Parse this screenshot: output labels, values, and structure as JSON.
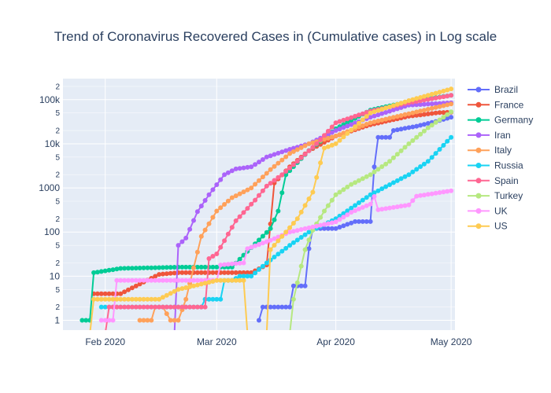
{
  "chart_data": {
    "type": "line",
    "title": "Trend of Coronavirus Recovered Cases in  (Cumulative cases) in Log scale",
    "xlabel": "",
    "ylabel": "",
    "y_scale": "log",
    "x_range": [
      "2020-01-21",
      "2020-05-02"
    ],
    "y_range": [
      0.6,
      300000
    ],
    "x_ticks": [
      {
        "date": "2020-02-01",
        "label": "Feb 2020"
      },
      {
        "date": "2020-03-01",
        "label": "Mar 2020"
      },
      {
        "date": "2020-04-01",
        "label": "Apr 2020"
      },
      {
        "date": "2020-05-01",
        "label": "May 2020"
      }
    ],
    "y_major_ticks": [
      {
        "value": 1,
        "label": "1"
      },
      {
        "value": 10,
        "label": "10"
      },
      {
        "value": 100,
        "label": "100"
      },
      {
        "value": 1000,
        "label": "1000"
      },
      {
        "value": 10000,
        "label": "10k"
      },
      {
        "value": 100000,
        "label": "100k"
      }
    ],
    "y_minor_ticks": [
      {
        "value": 2,
        "label": "2"
      },
      {
        "value": 5,
        "label": "5"
      },
      {
        "value": 20,
        "label": "2"
      },
      {
        "value": 50,
        "label": "5"
      },
      {
        "value": 200,
        "label": "2"
      },
      {
        "value": 500,
        "label": "5"
      },
      {
        "value": 2000,
        "label": "2"
      },
      {
        "value": 5000,
        "label": "5"
      },
      {
        "value": 20000,
        "label": "2"
      },
      {
        "value": 50000,
        "label": "5"
      },
      {
        "value": 200000,
        "label": "2"
      }
    ],
    "legend_position": "right",
    "series": [
      {
        "name": "Brazil",
        "color": "#636efa",
        "points": [
          [
            "2020-03-12",
            1
          ],
          [
            "2020-03-13",
            2
          ],
          [
            "2020-03-20",
            2
          ],
          [
            "2020-03-21",
            6
          ],
          [
            "2020-03-24",
            6
          ],
          [
            "2020-03-25",
            42
          ],
          [
            "2020-03-26",
            120
          ],
          [
            "2020-04-01",
            120
          ],
          [
            "2020-04-06",
            173
          ],
          [
            "2020-04-10",
            173
          ],
          [
            "2020-04-11",
            3000
          ],
          [
            "2020-04-12",
            14026
          ],
          [
            "2020-04-15",
            14026
          ],
          [
            "2020-04-16",
            20000
          ],
          [
            "2020-04-22",
            25000
          ],
          [
            "2020-04-27",
            32000
          ],
          [
            "2020-05-01",
            40000
          ]
        ]
      },
      {
        "name": "France",
        "color": "#ef553b",
        "points": [
          [
            "2020-01-29",
            4
          ],
          [
            "2020-02-05",
            4
          ],
          [
            "2020-02-15",
            11
          ],
          [
            "2020-02-20",
            12
          ],
          [
            "2020-03-05",
            12
          ],
          [
            "2020-03-10",
            12
          ],
          [
            "2020-03-14",
            18
          ],
          [
            "2020-03-16",
            1300
          ],
          [
            "2020-03-20",
            3000
          ],
          [
            "2020-03-25",
            7000
          ],
          [
            "2020-04-01",
            15000
          ],
          [
            "2020-04-10",
            27000
          ],
          [
            "2020-04-20",
            42000
          ],
          [
            "2020-04-28",
            51000
          ],
          [
            "2020-05-01",
            52000
          ]
        ]
      },
      {
        "name": "Germany",
        "color": "#00cc96",
        "points": [
          [
            "2020-01-26",
            1
          ],
          [
            "2020-01-28",
            1
          ],
          [
            "2020-01-29",
            12
          ],
          [
            "2020-02-05",
            15
          ],
          [
            "2020-02-20",
            16
          ],
          [
            "2020-03-05",
            16
          ],
          [
            "2020-03-08",
            30
          ],
          [
            "2020-03-12",
            66
          ],
          [
            "2020-03-15",
            120
          ],
          [
            "2020-03-17",
            300
          ],
          [
            "2020-03-19",
            2000
          ],
          [
            "2020-03-25",
            7000
          ],
          [
            "2020-04-01",
            22000
          ],
          [
            "2020-04-10",
            58000
          ],
          [
            "2020-04-20",
            90000
          ],
          [
            "2020-05-01",
            125000
          ]
        ]
      },
      {
        "name": "Iran",
        "color": "#ab63fa",
        "points": [
          [
            "2020-02-19",
            0.5
          ],
          [
            "2020-02-20",
            50
          ],
          [
            "2020-02-22",
            73
          ],
          [
            "2020-02-25",
            290
          ],
          [
            "2020-02-28",
            700
          ],
          [
            "2020-03-03",
            2000
          ],
          [
            "2020-03-06",
            2700
          ],
          [
            "2020-03-10",
            3000
          ],
          [
            "2020-03-14",
            5000
          ],
          [
            "2020-03-20",
            7500
          ],
          [
            "2020-03-25",
            10000
          ],
          [
            "2020-04-01",
            20000
          ],
          [
            "2020-04-10",
            40000
          ],
          [
            "2020-04-20",
            75000
          ],
          [
            "2020-05-01",
            85000
          ]
        ]
      },
      {
        "name": "Italy",
        "color": "#ffa15a",
        "points": [
          [
            "2020-02-10",
            1
          ],
          [
            "2020-02-13",
            1
          ],
          [
            "2020-02-14",
            2
          ],
          [
            "2020-02-16",
            2
          ],
          [
            "2020-02-18",
            1
          ],
          [
            "2020-02-20",
            1
          ],
          [
            "2020-02-22",
            3
          ],
          [
            "2020-02-26",
            80
          ],
          [
            "2020-03-01",
            300
          ],
          [
            "2020-03-05",
            600
          ],
          [
            "2020-03-10",
            1000
          ],
          [
            "2020-03-15",
            2600
          ],
          [
            "2020-03-20",
            6000
          ],
          [
            "2020-03-25",
            10000
          ],
          [
            "2020-04-01",
            15000
          ],
          [
            "2020-04-10",
            30000
          ],
          [
            "2020-04-20",
            48000
          ],
          [
            "2020-05-01",
            80000
          ]
        ]
      },
      {
        "name": "Russia",
        "color": "#19d3f3",
        "points": [
          [
            "2020-01-31",
            2
          ],
          [
            "2020-02-05",
            2
          ],
          [
            "2020-02-20",
            2
          ],
          [
            "2020-02-26",
            2
          ],
          [
            "2020-02-27",
            3
          ],
          [
            "2020-03-02",
            3
          ],
          [
            "2020-03-03",
            8
          ],
          [
            "2020-03-05",
            8
          ],
          [
            "2020-03-07",
            10
          ],
          [
            "2020-03-10",
            10
          ],
          [
            "2020-03-14",
            20
          ],
          [
            "2020-03-20",
            50
          ],
          [
            "2020-03-25",
            100
          ],
          [
            "2020-04-01",
            200
          ],
          [
            "2020-04-10",
            700
          ],
          [
            "2020-04-20",
            2000
          ],
          [
            "2020-04-25",
            4000
          ],
          [
            "2020-05-01",
            14000
          ]
        ]
      },
      {
        "name": "Spain",
        "color": "#ff6692",
        "points": [
          [
            "2020-02-01",
            0.5
          ],
          [
            "2020-02-02",
            2
          ],
          [
            "2020-02-10",
            2
          ],
          [
            "2020-02-20",
            2
          ],
          [
            "2020-02-27",
            2
          ],
          [
            "2020-02-28",
            25
          ],
          [
            "2020-03-01",
            32
          ],
          [
            "2020-03-06",
            180
          ],
          [
            "2020-03-11",
            530
          ],
          [
            "2020-03-14",
            1100
          ],
          [
            "2020-03-18",
            2000
          ],
          [
            "2020-03-22",
            4000
          ],
          [
            "2020-03-27",
            10000
          ],
          [
            "2020-04-01",
            30000
          ],
          [
            "2020-04-10",
            55000
          ],
          [
            "2020-04-20",
            85000
          ],
          [
            "2020-05-01",
            125000
          ]
        ]
      },
      {
        "name": "Turkey",
        "color": "#b6e880",
        "points": [
          [
            "2020-03-20",
            0.5
          ],
          [
            "2020-03-21",
            3
          ],
          [
            "2020-03-24",
            40
          ],
          [
            "2020-03-26",
            110
          ],
          [
            "2020-03-29",
            300
          ],
          [
            "2020-04-01",
            700
          ],
          [
            "2020-04-05",
            1200
          ],
          [
            "2020-04-10",
            2000
          ],
          [
            "2020-04-15",
            4000
          ],
          [
            "2020-04-20",
            10000
          ],
          [
            "2020-04-25",
            23000
          ],
          [
            "2020-05-01",
            53000
          ]
        ]
      },
      {
        "name": "UK",
        "color": "#ff97ff",
        "points": [
          [
            "2020-01-31",
            1
          ],
          [
            "2020-02-03",
            1
          ],
          [
            "2020-02-04",
            8
          ],
          [
            "2020-02-10",
            8
          ],
          [
            "2020-02-20",
            8
          ],
          [
            "2020-03-01",
            8
          ],
          [
            "2020-03-02",
            18
          ],
          [
            "2020-03-05",
            19
          ],
          [
            "2020-03-08",
            20
          ],
          [
            "2020-03-09",
            42
          ],
          [
            "2020-03-15",
            65
          ],
          [
            "2020-03-20",
            100
          ],
          [
            "2020-04-01",
            170
          ],
          [
            "2020-04-05",
            280
          ],
          [
            "2020-04-10",
            430
          ],
          [
            "2020-04-11",
            640
          ],
          [
            "2020-04-12",
            320
          ],
          [
            "2020-04-20",
            410
          ],
          [
            "2020-04-22",
            650
          ],
          [
            "2020-05-01",
            860
          ]
        ]
      },
      {
        "name": "US",
        "color": "#fecb52",
        "points": [
          [
            "2020-01-28",
            0.5
          ],
          [
            "2020-01-29",
            3
          ],
          [
            "2020-02-05",
            3
          ],
          [
            "2020-02-15",
            3
          ],
          [
            "2020-02-20",
            5
          ],
          [
            "2020-03-01",
            8
          ],
          [
            "2020-03-05",
            8
          ],
          [
            "2020-03-08",
            8
          ],
          [
            "2020-03-09",
            0.5
          ],
          [
            "2020-03-14",
            0.5
          ],
          [
            "2020-03-15",
            40
          ],
          [
            "2020-03-19",
            100
          ],
          [
            "2020-03-22",
            200
          ],
          [
            "2020-03-26",
            800
          ],
          [
            "2020-03-29",
            8000
          ],
          [
            "2020-04-01",
            10000
          ],
          [
            "2020-04-10",
            50000
          ],
          [
            "2020-04-20",
            95000
          ],
          [
            "2020-05-01",
            175000
          ]
        ]
      }
    ]
  }
}
